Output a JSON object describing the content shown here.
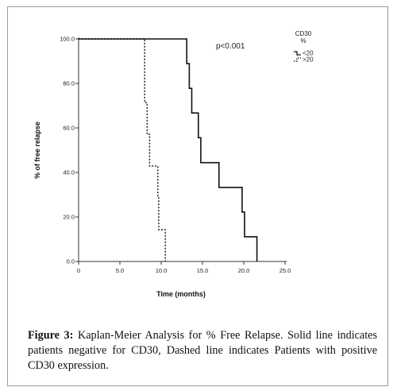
{
  "chart_data": {
    "type": "line",
    "subtype": "kaplan-meier step",
    "xlabel": "Time (months)",
    "ylabel": "% of free relapse",
    "xlim": [
      0,
      25
    ],
    "ylim": [
      0,
      100
    ],
    "x_ticks": [
      0,
      5,
      10,
      15,
      20,
      25
    ],
    "x_tick_labels": [
      "0",
      "5.0",
      "10.0",
      "15.0",
      "20.0",
      "25.0"
    ],
    "y_ticks": [
      0,
      20,
      40,
      60,
      80,
      100
    ],
    "y_tick_labels": [
      "0.0",
      "20.0",
      "40.0",
      "60.0",
      "80.0",
      "100.0"
    ],
    "annotation": "p<0.001",
    "legend_title": "CD30\n%",
    "legend_title_lines": [
      "CD30",
      "%"
    ],
    "legend_placement": "right",
    "grid": false,
    "series": [
      {
        "name": "<20",
        "style": "solid",
        "points": [
          [
            0,
            100
          ],
          [
            13.1,
            100
          ],
          [
            13.1,
            88.9
          ],
          [
            13.4,
            88.9
          ],
          [
            13.4,
            77.8
          ],
          [
            13.7,
            77.8
          ],
          [
            13.7,
            66.7
          ],
          [
            14.5,
            66.7
          ],
          [
            14.5,
            55.6
          ],
          [
            14.8,
            55.6
          ],
          [
            14.8,
            44.4
          ],
          [
            17.0,
            44.4
          ],
          [
            17.0,
            33.3
          ],
          [
            19.8,
            33.3
          ],
          [
            19.8,
            22.2
          ],
          [
            20.1,
            22.2
          ],
          [
            20.1,
            11.1
          ],
          [
            21.6,
            11.1
          ],
          [
            21.6,
            0
          ]
        ]
      },
      {
        "name": ">20",
        "style": "dashed",
        "points": [
          [
            0,
            100
          ],
          [
            8.0,
            100
          ],
          [
            8.0,
            71.4
          ],
          [
            8.3,
            71.4
          ],
          [
            8.3,
            57.1
          ],
          [
            8.6,
            57.1
          ],
          [
            8.6,
            42.9
          ],
          [
            9.6,
            42.9
          ],
          [
            9.6,
            28.6
          ],
          [
            9.7,
            28.6
          ],
          [
            9.7,
            14.3
          ],
          [
            10.5,
            14.3
          ],
          [
            10.5,
            0
          ]
        ]
      }
    ]
  },
  "caption": {
    "label": "Figure 3:",
    "text": " Kaplan-Meier Analysis for % Free Relapse. Solid line indicates patients negative for CD30, Dashed line indicates Patients with positive CD30 expression."
  }
}
